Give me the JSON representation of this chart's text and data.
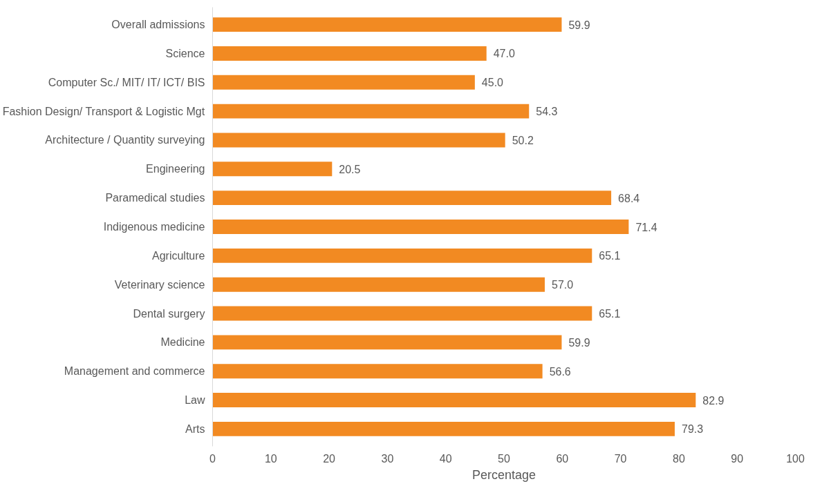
{
  "chart_data": {
    "type": "bar",
    "orientation": "horizontal",
    "xlabel": "Percentage",
    "categories": [
      "Overall admissions",
      "Science",
      "Computer Sc./ MIT/ IT/ ICT/ BIS",
      "Fashion Design/ Transport & Logistic Mgt",
      "Architecture / Quantity surveying",
      "Engineering",
      "Paramedical studies",
      "Indigenous medicine",
      "Agriculture",
      "Veterinary science",
      "Dental surgery",
      "Medicine",
      "Management and commerce",
      "Law",
      "Arts"
    ],
    "values": [
      59.9,
      47.0,
      45.0,
      54.3,
      50.2,
      20.5,
      68.4,
      71.4,
      65.1,
      57.0,
      65.1,
      59.9,
      56.6,
      82.9,
      79.3
    ],
    "value_labels": [
      "59.9",
      "47.0",
      "45.0",
      "54.3",
      "50.2",
      "20.5",
      "68.4",
      "71.4",
      "65.1",
      "57.0",
      "65.1",
      "59.9",
      "56.6",
      "82.9",
      "79.3"
    ],
    "color": "#f28a22",
    "xlim": [
      0,
      100
    ],
    "xticks": [
      0,
      10,
      20,
      30,
      40,
      50,
      60,
      70,
      80,
      90,
      100
    ],
    "grid": false
  }
}
